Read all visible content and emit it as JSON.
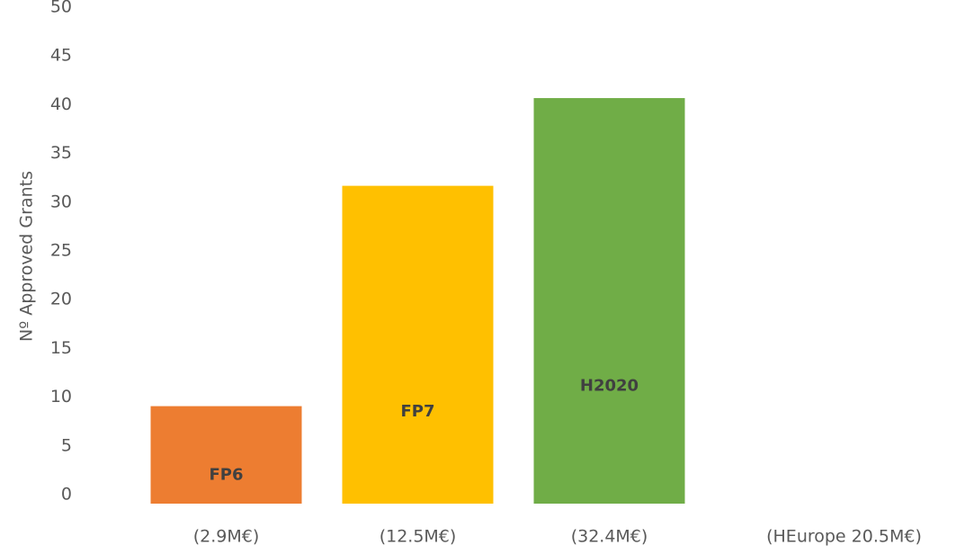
{
  "chart_data": {
    "type": "bar",
    "ylabel": "Nº Approved Grants",
    "categories": [
      "(2.9M€)",
      "(12.5M€)",
      "(32.4M€)",
      "(HEurope 20.5M€)"
    ],
    "values": [
      10,
      32.6,
      41.6,
      null
    ],
    "bar_labels": [
      "FP6",
      "FP7",
      "H2020",
      null
    ],
    "colors": [
      "#ed7d31",
      "#ffc000",
      "#70ad47",
      null
    ],
    "ylim": [
      0,
      50
    ],
    "yticks": [
      0,
      5,
      10,
      15,
      20,
      25,
      30,
      35,
      40,
      45,
      50
    ],
    "grid": false
  }
}
